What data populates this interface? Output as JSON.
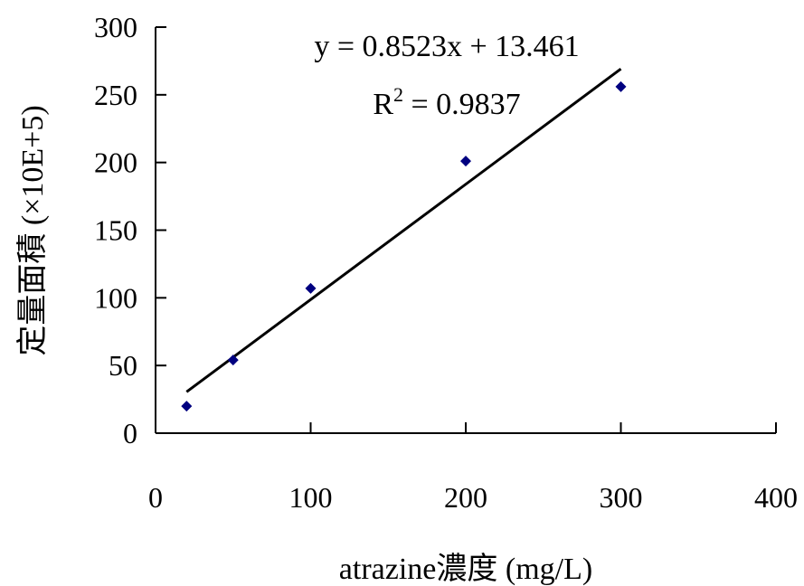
{
  "chart_data": {
    "type": "scatter",
    "title": "",
    "xlabel": "atrazine濃度 (mg/L)",
    "ylabel": "定量面積 (×10E+5)",
    "xlim": [
      0,
      400
    ],
    "ylim": [
      0,
      300
    ],
    "xticks": [
      0,
      100,
      200,
      300,
      400
    ],
    "yticks": [
      0,
      50,
      100,
      150,
      200,
      250,
      300
    ],
    "grid": false,
    "series": [
      {
        "x": [
          20,
          50,
          100,
          200,
          300
        ],
        "y": [
          20,
          54,
          107,
          201,
          256
        ],
        "marker": "diamond",
        "color": "#000080"
      }
    ],
    "trendline": {
      "type": "linear",
      "slope": 0.8523,
      "intercept": 13.461,
      "x_range": [
        20,
        300
      ],
      "color": "#000000"
    },
    "annotations": {
      "equation": "y = 0.8523x + 13.461",
      "r2_label": "R",
      "r2_sup": "2",
      "r2_value": " = 0.9837"
    }
  }
}
